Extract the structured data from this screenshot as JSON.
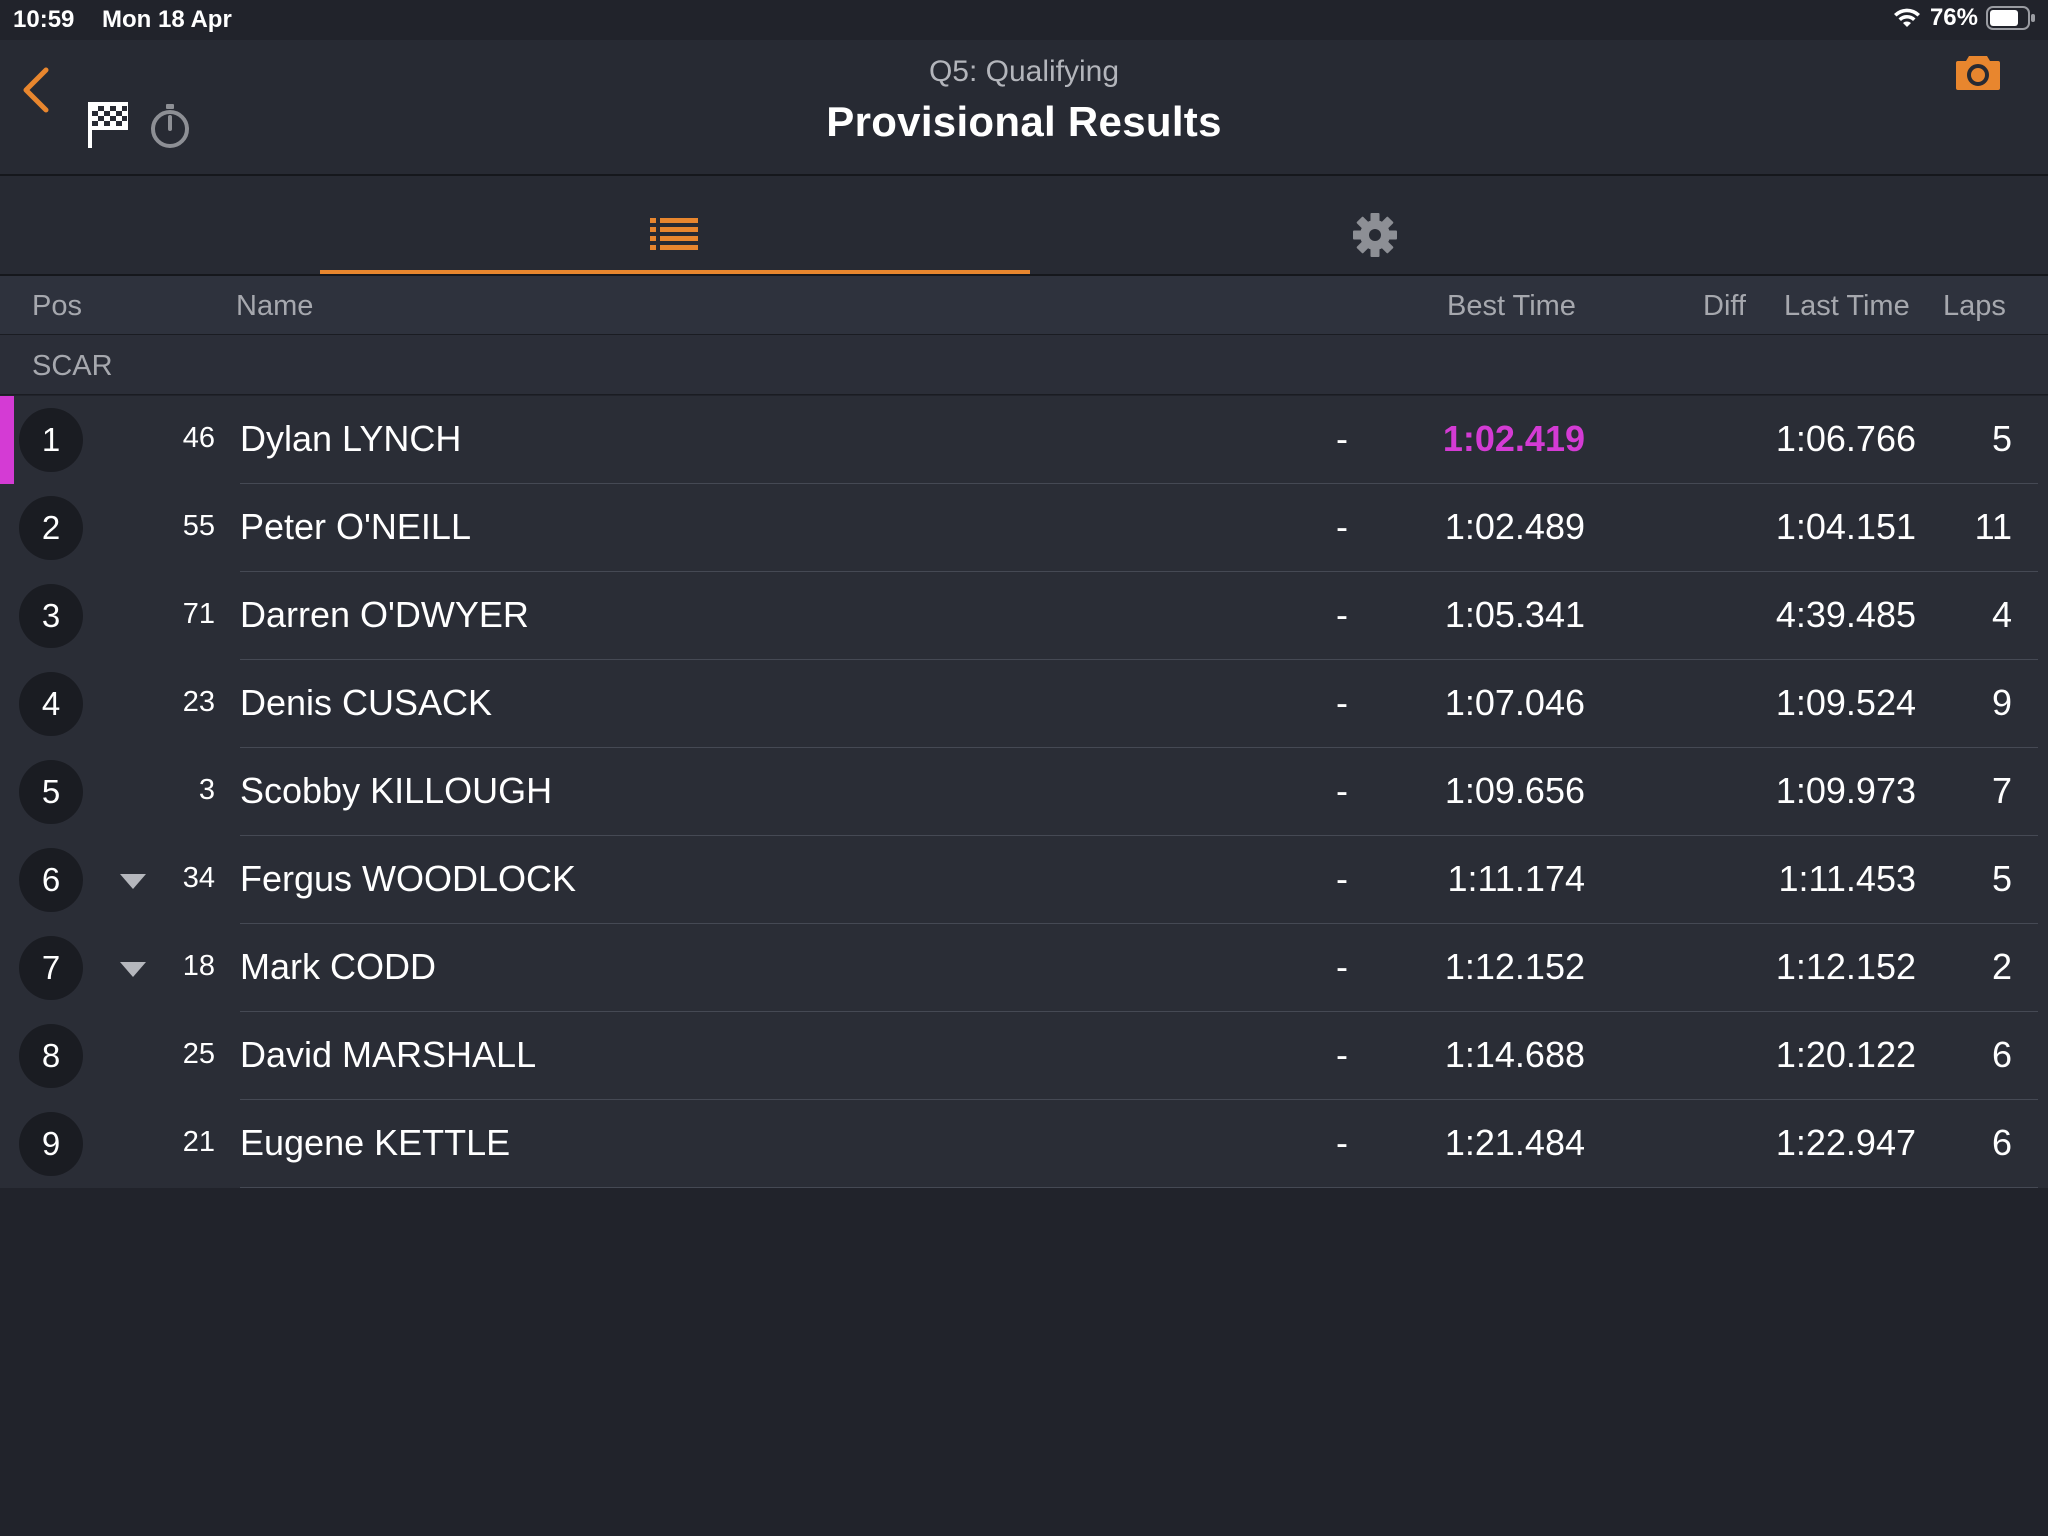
{
  "status_bar": {
    "time": "10:59",
    "date": "Mon 18 Apr",
    "battery": "76%"
  },
  "header": {
    "subtitle": "Q5: Qualifying",
    "title": "Provisional Results"
  },
  "tabs": [
    {
      "icon": "list-icon",
      "active": true
    },
    {
      "icon": "gear-icon",
      "active": false
    }
  ],
  "columns": {
    "pos": "Pos",
    "name": "Name",
    "best_time": "Best Time",
    "diff": "Diff",
    "last_time": "Last Time",
    "laps": "Laps"
  },
  "group": "SCAR",
  "colors": {
    "accent": "#e8862e",
    "fastest": "#d43bd4",
    "background": "#21232b"
  },
  "rows": [
    {
      "pos": "1",
      "num": "46",
      "name": "Dylan LYNCH",
      "best": "1:02.419",
      "diff": "-",
      "last": "1:06.766",
      "laps": "5",
      "fastest": true,
      "trend": ""
    },
    {
      "pos": "2",
      "num": "55",
      "name": "Peter O'NEILL",
      "best": "1:02.489",
      "diff": "-",
      "last": "1:04.151",
      "laps": "11",
      "fastest": false,
      "trend": ""
    },
    {
      "pos": "3",
      "num": "71",
      "name": "Darren O'DWYER",
      "best": "1:05.341",
      "diff": "-",
      "last": "4:39.485",
      "laps": "4",
      "fastest": false,
      "trend": ""
    },
    {
      "pos": "4",
      "num": "23",
      "name": "Denis CUSACK",
      "best": "1:07.046",
      "diff": "-",
      "last": "1:09.524",
      "laps": "9",
      "fastest": false,
      "trend": ""
    },
    {
      "pos": "5",
      "num": "3",
      "name": "Scobby KILLOUGH",
      "best": "1:09.656",
      "diff": "-",
      "last": "1:09.973",
      "laps": "7",
      "fastest": false,
      "trend": ""
    },
    {
      "pos": "6",
      "num": "34",
      "name": "Fergus WOODLOCK",
      "best": "1:11.174",
      "diff": "-",
      "last": "1:11.453",
      "laps": "5",
      "fastest": false,
      "trend": "down"
    },
    {
      "pos": "7",
      "num": "18",
      "name": "Mark CODD",
      "best": "1:12.152",
      "diff": "-",
      "last": "1:12.152",
      "laps": "2",
      "fastest": false,
      "trend": "down"
    },
    {
      "pos": "8",
      "num": "25",
      "name": "David MARSHALL",
      "best": "1:14.688",
      "diff": "-",
      "last": "1:20.122",
      "laps": "6",
      "fastest": false,
      "trend": ""
    },
    {
      "pos": "9",
      "num": "21",
      "name": "Eugene KETTLE",
      "best": "1:21.484",
      "diff": "-",
      "last": "1:22.947",
      "laps": "6",
      "fastest": false,
      "trend": ""
    }
  ]
}
